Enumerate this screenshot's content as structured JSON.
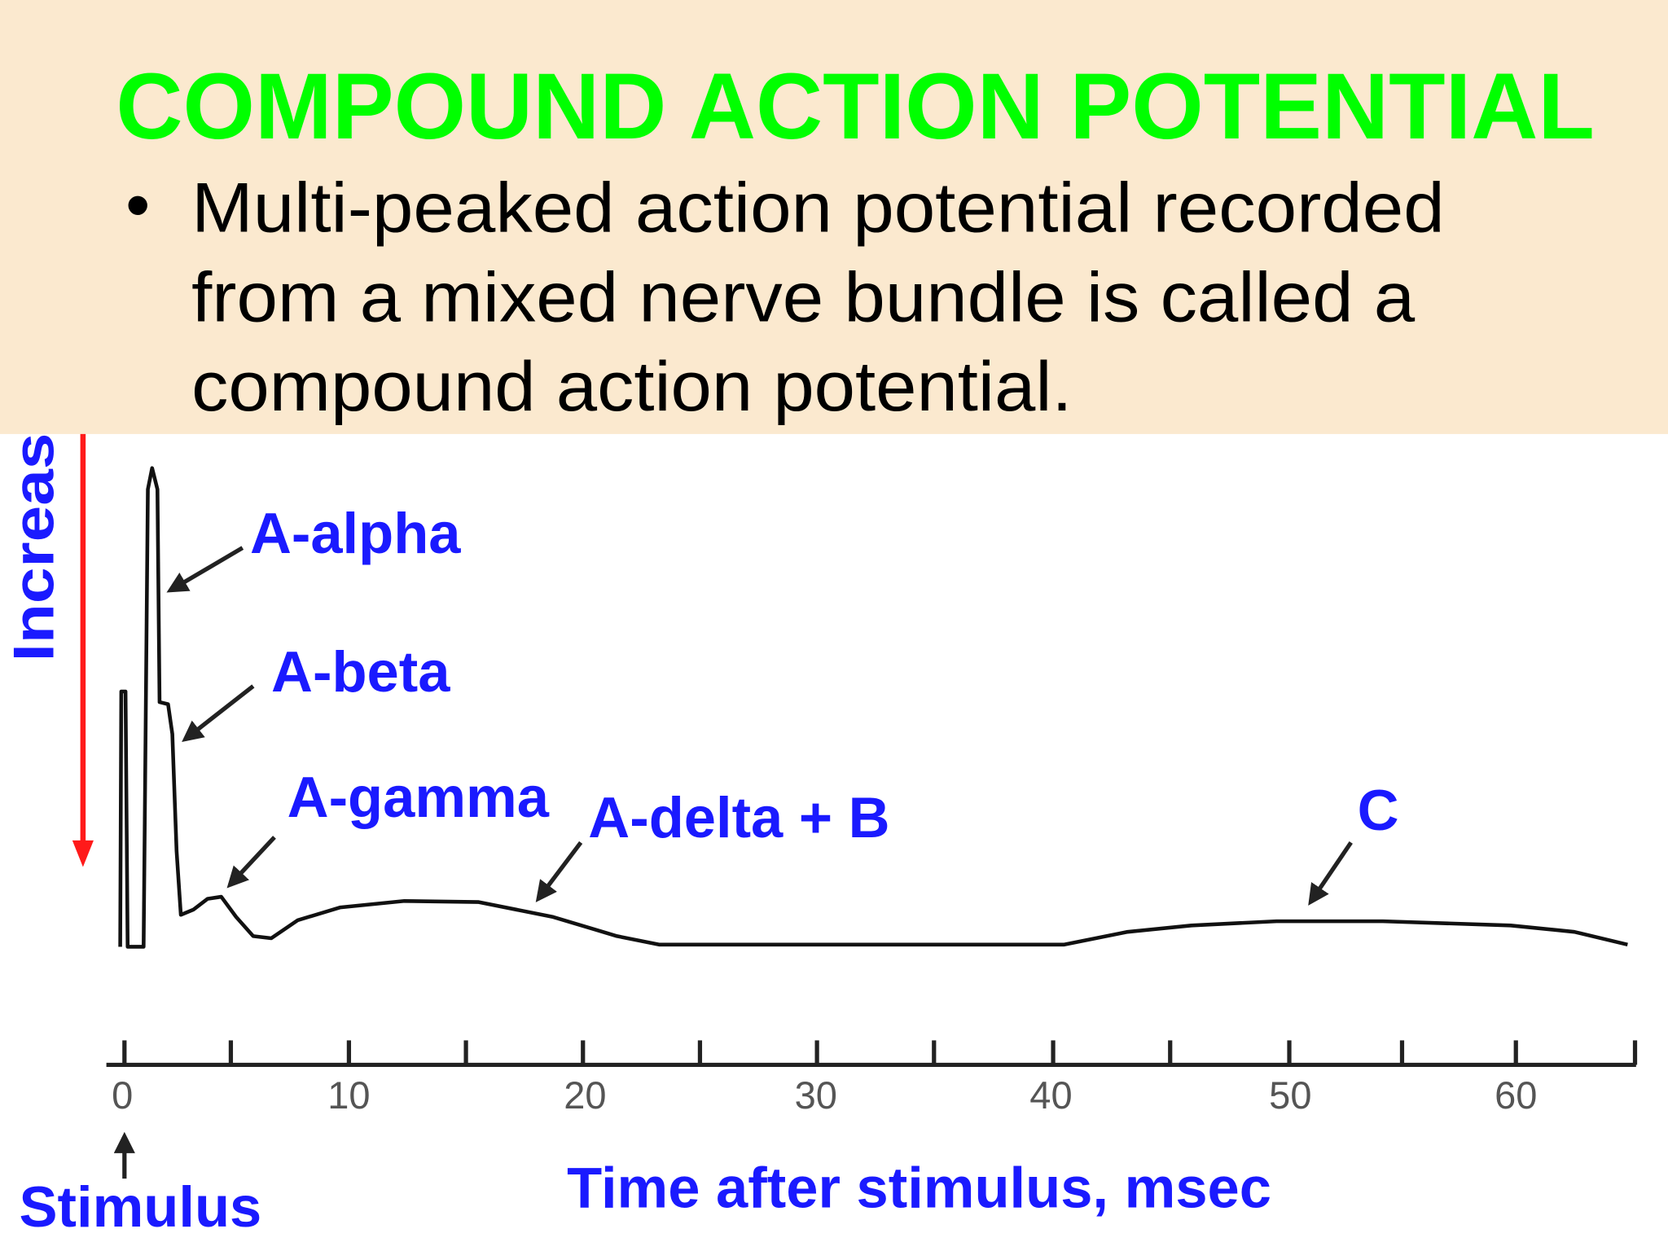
{
  "title": "COMPOUND ACTION POTENTIAL",
  "bullet": {
    "marker": "•",
    "lines": [
      "Multi-peaked action potential recorded",
      "from a mixed nerve bundle is called a",
      "compound action potential."
    ]
  },
  "diagram": {
    "y_axis_label": "Increas",
    "peak_labels": [
      "A-alpha",
      "A-beta",
      "A-gamma",
      "A-delta + B",
      "C"
    ],
    "x_tick_labels": [
      "0",
      "10",
      "20",
      "30",
      "40",
      "50",
      "60"
    ],
    "stimulus_label": "Stimulus",
    "x_axis_label": "Time after stimulus, msec"
  }
}
